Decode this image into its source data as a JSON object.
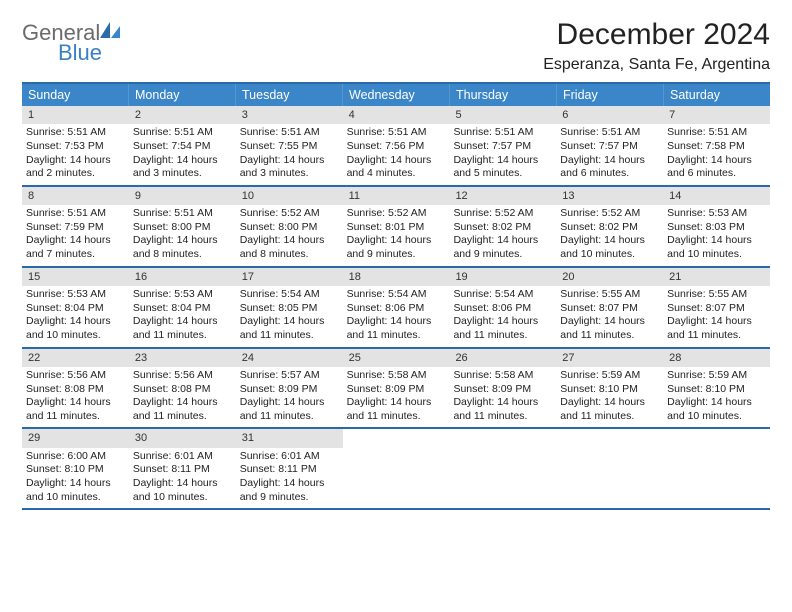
{
  "brand": {
    "name1": "General",
    "name2": "Blue"
  },
  "title": "December 2024",
  "subtitle": "Esperanza, Santa Fe, Argentina",
  "colors": {
    "header_bg": "#3b86c8",
    "header_border": "#2b6aa8",
    "daynum_bg": "#e3e3e3",
    "text": "#222222",
    "logo_gray": "#6b6b6b",
    "logo_blue": "#3b7fc4"
  },
  "weekdays": [
    "Sunday",
    "Monday",
    "Tuesday",
    "Wednesday",
    "Thursday",
    "Friday",
    "Saturday"
  ],
  "weeks": [
    [
      {
        "n": "1",
        "sr": "Sunrise: 5:51 AM",
        "ss": "Sunset: 7:53 PM",
        "dl1": "Daylight: 14 hours",
        "dl2": "and 2 minutes."
      },
      {
        "n": "2",
        "sr": "Sunrise: 5:51 AM",
        "ss": "Sunset: 7:54 PM",
        "dl1": "Daylight: 14 hours",
        "dl2": "and 3 minutes."
      },
      {
        "n": "3",
        "sr": "Sunrise: 5:51 AM",
        "ss": "Sunset: 7:55 PM",
        "dl1": "Daylight: 14 hours",
        "dl2": "and 3 minutes."
      },
      {
        "n": "4",
        "sr": "Sunrise: 5:51 AM",
        "ss": "Sunset: 7:56 PM",
        "dl1": "Daylight: 14 hours",
        "dl2": "and 4 minutes."
      },
      {
        "n": "5",
        "sr": "Sunrise: 5:51 AM",
        "ss": "Sunset: 7:57 PM",
        "dl1": "Daylight: 14 hours",
        "dl2": "and 5 minutes."
      },
      {
        "n": "6",
        "sr": "Sunrise: 5:51 AM",
        "ss": "Sunset: 7:57 PM",
        "dl1": "Daylight: 14 hours",
        "dl2": "and 6 minutes."
      },
      {
        "n": "7",
        "sr": "Sunrise: 5:51 AM",
        "ss": "Sunset: 7:58 PM",
        "dl1": "Daylight: 14 hours",
        "dl2": "and 6 minutes."
      }
    ],
    [
      {
        "n": "8",
        "sr": "Sunrise: 5:51 AM",
        "ss": "Sunset: 7:59 PM",
        "dl1": "Daylight: 14 hours",
        "dl2": "and 7 minutes."
      },
      {
        "n": "9",
        "sr": "Sunrise: 5:51 AM",
        "ss": "Sunset: 8:00 PM",
        "dl1": "Daylight: 14 hours",
        "dl2": "and 8 minutes."
      },
      {
        "n": "10",
        "sr": "Sunrise: 5:52 AM",
        "ss": "Sunset: 8:00 PM",
        "dl1": "Daylight: 14 hours",
        "dl2": "and 8 minutes."
      },
      {
        "n": "11",
        "sr": "Sunrise: 5:52 AM",
        "ss": "Sunset: 8:01 PM",
        "dl1": "Daylight: 14 hours",
        "dl2": "and 9 minutes."
      },
      {
        "n": "12",
        "sr": "Sunrise: 5:52 AM",
        "ss": "Sunset: 8:02 PM",
        "dl1": "Daylight: 14 hours",
        "dl2": "and 9 minutes."
      },
      {
        "n": "13",
        "sr": "Sunrise: 5:52 AM",
        "ss": "Sunset: 8:02 PM",
        "dl1": "Daylight: 14 hours",
        "dl2": "and 10 minutes."
      },
      {
        "n": "14",
        "sr": "Sunrise: 5:53 AM",
        "ss": "Sunset: 8:03 PM",
        "dl1": "Daylight: 14 hours",
        "dl2": "and 10 minutes."
      }
    ],
    [
      {
        "n": "15",
        "sr": "Sunrise: 5:53 AM",
        "ss": "Sunset: 8:04 PM",
        "dl1": "Daylight: 14 hours",
        "dl2": "and 10 minutes."
      },
      {
        "n": "16",
        "sr": "Sunrise: 5:53 AM",
        "ss": "Sunset: 8:04 PM",
        "dl1": "Daylight: 14 hours",
        "dl2": "and 11 minutes."
      },
      {
        "n": "17",
        "sr": "Sunrise: 5:54 AM",
        "ss": "Sunset: 8:05 PM",
        "dl1": "Daylight: 14 hours",
        "dl2": "and 11 minutes."
      },
      {
        "n": "18",
        "sr": "Sunrise: 5:54 AM",
        "ss": "Sunset: 8:06 PM",
        "dl1": "Daylight: 14 hours",
        "dl2": "and 11 minutes."
      },
      {
        "n": "19",
        "sr": "Sunrise: 5:54 AM",
        "ss": "Sunset: 8:06 PM",
        "dl1": "Daylight: 14 hours",
        "dl2": "and 11 minutes."
      },
      {
        "n": "20",
        "sr": "Sunrise: 5:55 AM",
        "ss": "Sunset: 8:07 PM",
        "dl1": "Daylight: 14 hours",
        "dl2": "and 11 minutes."
      },
      {
        "n": "21",
        "sr": "Sunrise: 5:55 AM",
        "ss": "Sunset: 8:07 PM",
        "dl1": "Daylight: 14 hours",
        "dl2": "and 11 minutes."
      }
    ],
    [
      {
        "n": "22",
        "sr": "Sunrise: 5:56 AM",
        "ss": "Sunset: 8:08 PM",
        "dl1": "Daylight: 14 hours",
        "dl2": "and 11 minutes."
      },
      {
        "n": "23",
        "sr": "Sunrise: 5:56 AM",
        "ss": "Sunset: 8:08 PM",
        "dl1": "Daylight: 14 hours",
        "dl2": "and 11 minutes."
      },
      {
        "n": "24",
        "sr": "Sunrise: 5:57 AM",
        "ss": "Sunset: 8:09 PM",
        "dl1": "Daylight: 14 hours",
        "dl2": "and 11 minutes."
      },
      {
        "n": "25",
        "sr": "Sunrise: 5:58 AM",
        "ss": "Sunset: 8:09 PM",
        "dl1": "Daylight: 14 hours",
        "dl2": "and 11 minutes."
      },
      {
        "n": "26",
        "sr": "Sunrise: 5:58 AM",
        "ss": "Sunset: 8:09 PM",
        "dl1": "Daylight: 14 hours",
        "dl2": "and 11 minutes."
      },
      {
        "n": "27",
        "sr": "Sunrise: 5:59 AM",
        "ss": "Sunset: 8:10 PM",
        "dl1": "Daylight: 14 hours",
        "dl2": "and 11 minutes."
      },
      {
        "n": "28",
        "sr": "Sunrise: 5:59 AM",
        "ss": "Sunset: 8:10 PM",
        "dl1": "Daylight: 14 hours",
        "dl2": "and 10 minutes."
      }
    ],
    [
      {
        "n": "29",
        "sr": "Sunrise: 6:00 AM",
        "ss": "Sunset: 8:10 PM",
        "dl1": "Daylight: 14 hours",
        "dl2": "and 10 minutes."
      },
      {
        "n": "30",
        "sr": "Sunrise: 6:01 AM",
        "ss": "Sunset: 8:11 PM",
        "dl1": "Daylight: 14 hours",
        "dl2": "and 10 minutes."
      },
      {
        "n": "31",
        "sr": "Sunrise: 6:01 AM",
        "ss": "Sunset: 8:11 PM",
        "dl1": "Daylight: 14 hours",
        "dl2": "and 9 minutes."
      },
      {
        "empty": true
      },
      {
        "empty": true
      },
      {
        "empty": true
      },
      {
        "empty": true
      }
    ]
  ]
}
